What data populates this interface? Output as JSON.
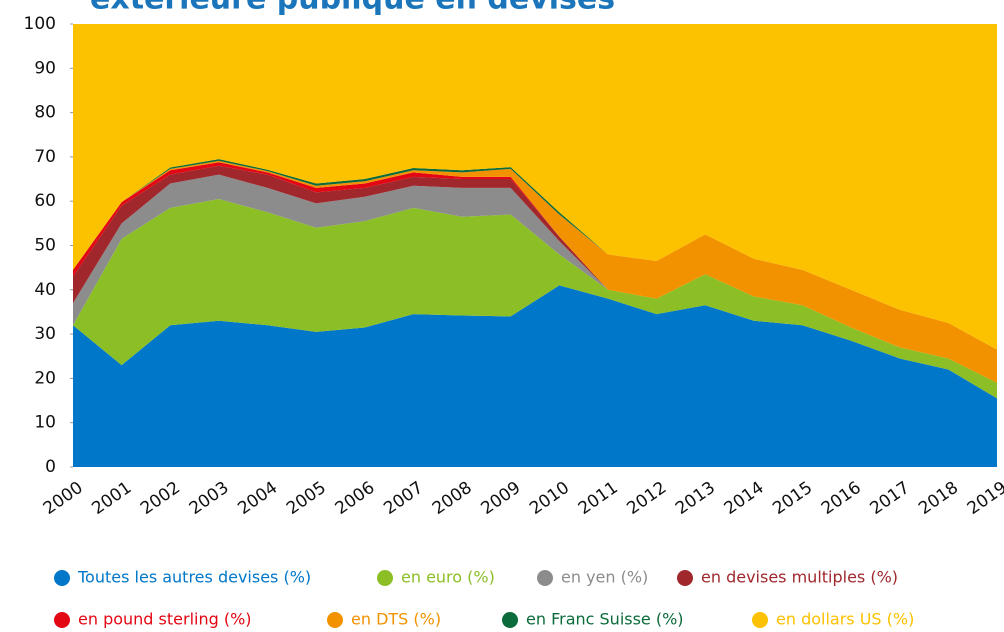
{
  "chart_data": {
    "type": "stacked_area",
    "title": "extérieure publique en devises",
    "categories": [
      "2000",
      "2001",
      "2002",
      "2003",
      "2004",
      "2005",
      "2006",
      "2007",
      "2008",
      "2009",
      "2010",
      "2011",
      "2012",
      "2013",
      "2014",
      "2015",
      "2016",
      "2017",
      "2018",
      "2019"
    ],
    "ylim": [
      0,
      100
    ],
    "yticks": [
      0,
      10,
      20,
      30,
      40,
      50,
      60,
      70,
      80,
      90,
      100
    ],
    "series": [
      {
        "name": "Toutes les autres devises (%)",
        "color": "#0077c8",
        "values": [
          32,
          23,
          32,
          33,
          32,
          30.5,
          31.5,
          34.5,
          34.2,
          34,
          41,
          38,
          34.5,
          36.5,
          33,
          32,
          28.5,
          24.5,
          22,
          15.5
        ]
      },
      {
        "name": "en euro (%)",
        "color": "#8cbf26",
        "values": [
          0,
          28.5,
          26.5,
          27.5,
          25.5,
          23.5,
          24,
          24,
          22.3,
          23,
          7,
          2,
          3.5,
          7,
          5.5,
          4.5,
          3,
          2.5,
          2.5,
          3.5
        ]
      },
      {
        "name": "en yen (%)",
        "color": "#8c8c8c",
        "values": [
          5,
          3.5,
          5.5,
          5.5,
          5.5,
          5.5,
          5.5,
          5,
          6.5,
          6,
          3,
          0,
          0,
          0,
          0,
          0,
          0,
          0,
          0,
          0
        ]
      },
      {
        "name": "en devises multiples (%)",
        "color": "#a0282d",
        "values": [
          6,
          4,
          2,
          2,
          3,
          2.5,
          2,
          2,
          2,
          2,
          1,
          0,
          0,
          0,
          0,
          0,
          0,
          0,
          0,
          0
        ]
      },
      {
        "name": "en pound sterling (%)",
        "color": "#e30613",
        "values": [
          1.5,
          0.8,
          1,
          0.8,
          0.5,
          1,
          1,
          1,
          0.5,
          0.5,
          0,
          0,
          0,
          0,
          0,
          0,
          0,
          0,
          0,
          0
        ]
      },
      {
        "name": "en DTS (%)",
        "color": "#f39200",
        "values": [
          0,
          0,
          0.3,
          0.3,
          0.3,
          0.5,
          0.5,
          0.5,
          1,
          1.8,
          5,
          8,
          8.5,
          9,
          8.5,
          8,
          8.5,
          8.5,
          8,
          7.5
        ]
      },
      {
        "name": "en Franc Suisse (%)",
        "color": "#0b6b3a",
        "values": [
          0,
          0,
          0.3,
          0.4,
          0.3,
          0.5,
          0.5,
          0.5,
          0.5,
          0.4,
          0.5,
          0,
          0,
          0,
          0,
          0,
          0,
          0,
          0,
          0
        ]
      },
      {
        "name": "en dollars US (%)",
        "color": "#fcc200",
        "values": [
          55.5,
          40.2,
          32.4,
          30.5,
          32.9,
          36,
          35,
          32.5,
          33,
          32.3,
          42.5,
          52,
          53.5,
          47.5,
          53,
          55.5,
          60,
          64.5,
          67.5,
          73.5
        ]
      }
    ]
  }
}
